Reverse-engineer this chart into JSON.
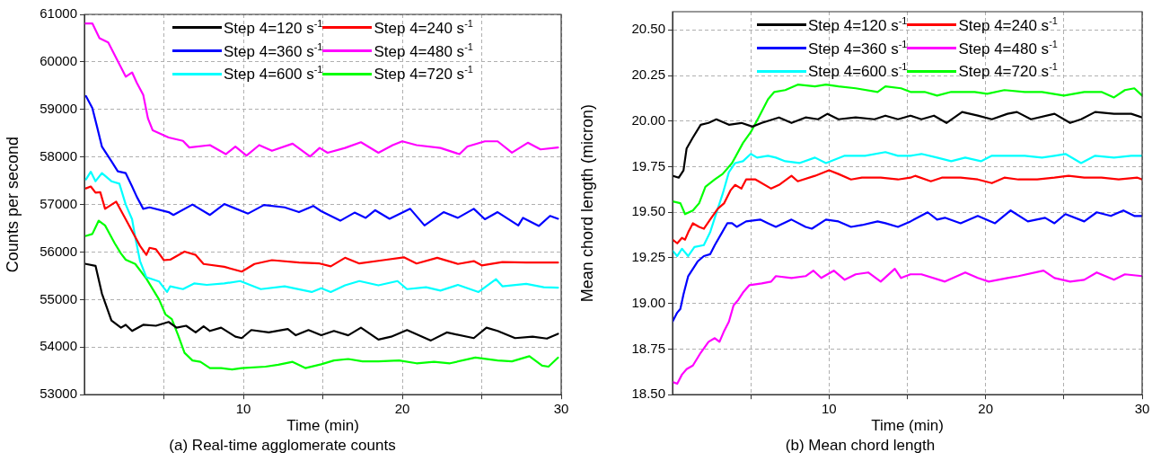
{
  "chart_data": [
    {
      "type": "line",
      "title": "(a) Real-time agglomerate counts",
      "xlabel": "Time (min)",
      "ylabel": "Counts per second",
      "xlim": [
        0,
        30
      ],
      "xticks": [
        {
          "value": 5,
          "label": null
        },
        10,
        {
          "value": 15,
          "label": null
        },
        20,
        {
          "value": 25,
          "label": null
        },
        30
      ],
      "ylim": [
        53000,
        61000
      ],
      "yticks": [
        53000,
        54000,
        55000,
        56000,
        57000,
        58000,
        59000,
        60000,
        61000
      ],
      "grid": true,
      "legend": "top",
      "marker": "none",
      "line_style": "solid",
      "series": [
        {
          "name": "Step 4=120 s$^{-1}$",
          "color": "#000000",
          "x": [
            0.1,
            0.7,
            1.1,
            1.3,
            1.7,
            2.3,
            2.6,
            3.0,
            3.7,
            4.5,
            5.3,
            5.8,
            6.4,
            7.0,
            7.5,
            7.9,
            8.6,
            9.5,
            9.9,
            10.5,
            11.6,
            12.8,
            13.3,
            14.1,
            14.9,
            15.7,
            16.6,
            17.4,
            18.5,
            19.3,
            20.3,
            21.8,
            22.8,
            24.5,
            25.3,
            26.0,
            27.1,
            28.2,
            29.1,
            29.8
          ],
          "values": [
            55750,
            55710,
            55130,
            54940,
            54560,
            54410,
            54470,
            54340,
            54470,
            54450,
            54530,
            54410,
            54450,
            54310,
            54440,
            54340,
            54410,
            54220,
            54190,
            54360,
            54310,
            54380,
            54250,
            54360,
            54250,
            54340,
            54250,
            54410,
            54160,
            54220,
            54360,
            54140,
            54310,
            54190,
            54410,
            54340,
            54190,
            54220,
            54180,
            54280
          ]
        },
        {
          "name": "Step 4=240 s$^{-1}$",
          "color": "#ff0000",
          "x": [
            0.1,
            0.4,
            0.7,
            1.0,
            1.3,
            2.0,
            2.6,
            3.1,
            3.5,
            3.9,
            4.1,
            4.5,
            5.0,
            5.4,
            6.3,
            7.0,
            7.5,
            8.8,
            9.9,
            10.7,
            11.8,
            13.5,
            14.8,
            15.5,
            16.4,
            17.3,
            18.8,
            20.1,
            20.9,
            22.2,
            23.5,
            24.5,
            25.0,
            26.3,
            27.8,
            29.8
          ],
          "values": [
            57340,
            57380,
            57250,
            57260,
            56910,
            57060,
            56690,
            56380,
            56130,
            55940,
            56090,
            56060,
            55830,
            55840,
            56010,
            55940,
            55750,
            55690,
            55590,
            55750,
            55830,
            55780,
            55760,
            55700,
            55880,
            55760,
            55830,
            55890,
            55760,
            55880,
            55750,
            55810,
            55720,
            55790,
            55780,
            55780
          ]
        },
        {
          "name": "Step 4=360 s$^{-1}$",
          "color": "#0000ff",
          "x": [
            0.1,
            0.5,
            0.8,
            1.1,
            1.7,
            2.1,
            2.6,
            3.0,
            3.3,
            3.7,
            4.1,
            5.3,
            5.6,
            6.8,
            7.9,
            8.8,
            10.3,
            11.3,
            12.6,
            13.5,
            14.4,
            14.9,
            16.1,
            17.0,
            17.7,
            18.3,
            19.2,
            20.5,
            21.4,
            22.6,
            23.5,
            24.5,
            25.2,
            26.0,
            27.3,
            27.6,
            28.6,
            29.3,
            29.8
          ],
          "values": [
            59280,
            59030,
            58630,
            58220,
            57910,
            57700,
            57660,
            57380,
            57160,
            56910,
            56940,
            56840,
            56780,
            57000,
            56780,
            57010,
            56810,
            56990,
            56940,
            56840,
            56970,
            56860,
            56660,
            56830,
            56720,
            56880,
            56700,
            56910,
            56560,
            56840,
            56720,
            56910,
            56690,
            56840,
            56560,
            56720,
            56550,
            56760,
            56700
          ]
        },
        {
          "name": "Step 4=480 s$^{-1}$",
          "color": "#ff00ff",
          "x": [
            0,
            0.5,
            0.95,
            1.5,
            2.6,
            3.0,
            3.3,
            3.7,
            4.0,
            4.3,
            5.3,
            6.2,
            6.6,
            7.9,
            8.9,
            9.5,
            10.2,
            11.0,
            11.8,
            13.1,
            14.2,
            14.8,
            15.3,
            16.4,
            17.4,
            18.5,
            19.4,
            20.0,
            20.9,
            22.4,
            23.6,
            24.1,
            25.2,
            26.0,
            26.9,
            27.9,
            28.7,
            29.8
          ],
          "values": [
            60810,
            60810,
            60500,
            60410,
            59690,
            59780,
            59560,
            59310,
            58810,
            58560,
            58410,
            58340,
            58200,
            58250,
            58060,
            58220,
            58030,
            58250,
            58130,
            58280,
            58010,
            58190,
            58090,
            58190,
            58310,
            58090,
            58250,
            58330,
            58250,
            58190,
            58060,
            58220,
            58330,
            58330,
            58090,
            58300,
            58160,
            58200
          ]
        },
        {
          "name": "Step 4=600 s$^{-1}$",
          "color": "#00ffff",
          "x": [
            0.1,
            0.4,
            0.7,
            1.1,
            1.7,
            2.2,
            2.6,
            3.0,
            3.2,
            3.5,
            3.9,
            4.7,
            5.2,
            5.4,
            6.2,
            6.9,
            7.7,
            8.8,
            9.8,
            11.1,
            12.6,
            14.3,
            14.9,
            15.5,
            16.4,
            17.3,
            18.5,
            19.7,
            20.3,
            21.5,
            22.4,
            23.5,
            24.8,
            25.9,
            26.3,
            27.8,
            28.9,
            29.8
          ],
          "values": [
            57530,
            57690,
            57490,
            57660,
            57490,
            57440,
            57000,
            56690,
            56310,
            55810,
            55470,
            55380,
            55160,
            55280,
            55220,
            55340,
            55310,
            55340,
            55390,
            55220,
            55280,
            55160,
            55240,
            55160,
            55300,
            55390,
            55300,
            55390,
            55220,
            55260,
            55190,
            55310,
            55160,
            55430,
            55280,
            55330,
            55260,
            55250
          ]
        },
        {
          "name": "Step 4=720 s$^{-1}$",
          "color": "#00ff00",
          "x": [
            0.1,
            0.5,
            0.9,
            1.3,
            1.9,
            2.3,
            2.6,
            3.2,
            3.9,
            4.7,
            5.1,
            5.5,
            5.9,
            6.3,
            6.8,
            7.3,
            7.9,
            8.6,
            9.3,
            9.9,
            11.4,
            12.2,
            13.1,
            13.9,
            14.9,
            15.7,
            16.6,
            17.5,
            18.5,
            19.8,
            20.9,
            22.0,
            23.0,
            24.6,
            26.0,
            26.9,
            28.0,
            28.8,
            29.2,
            29.8
          ],
          "values": [
            56340,
            56380,
            56660,
            56560,
            56190,
            55970,
            55840,
            55750,
            55440,
            55000,
            54690,
            54590,
            54250,
            53880,
            53720,
            53690,
            53560,
            53560,
            53530,
            53560,
            53590,
            53630,
            53690,
            53560,
            53640,
            53720,
            53750,
            53700,
            53700,
            53720,
            53660,
            53690,
            53660,
            53780,
            53720,
            53700,
            53810,
            53610,
            53590,
            53780
          ]
        }
      ]
    },
    {
      "type": "line",
      "title": "(b) Mean chord length",
      "xlabel": "Time (min)",
      "ylabel": "Mean chord length (micron)",
      "xlim": [
        0,
        30
      ],
      "xticks": [
        {
          "value": 5,
          "label": null
        },
        10,
        {
          "value": 15,
          "label": null
        },
        20,
        {
          "value": 25,
          "label": null
        },
        30
      ],
      "ylim": [
        18.5,
        20.6
      ],
      "yticks": [
        {
          "value": 18.5,
          "label": "18.50"
        },
        18.75,
        {
          "value": 19,
          "label": "19.00"
        },
        19.25,
        {
          "value": 19.5,
          "label": "19.50"
        },
        19.75,
        {
          "value": 20,
          "label": "20.00"
        },
        20.25,
        {
          "value": 20.5,
          "label": "20.50"
        }
      ],
      "grid": true,
      "legend": "top",
      "marker": "none",
      "line_style": "solid",
      "series": [
        {
          "name": "Step 4=120 s$^{-1}$",
          "color": "#000000",
          "x": [
            0,
            0.4,
            0.7,
            0.9,
            1.3,
            1.8,
            2.3,
            2.8,
            3.6,
            4.4,
            5.1,
            5.7,
            6.8,
            7.6,
            8.5,
            9.3,
            9.9,
            10.6,
            11.7,
            12.9,
            13.6,
            14.4,
            15.2,
            15.9,
            16.7,
            17.5,
            18.5,
            19.5,
            20.4,
            21.4,
            22.0,
            22.9,
            24.4,
            25.4,
            26.1,
            27.0,
            28.2,
            29.3,
            30
          ],
          "values": [
            19.7,
            19.69,
            19.73,
            19.85,
            19.91,
            19.98,
            19.99,
            20.01,
            19.98,
            19.99,
            19.97,
            19.99,
            20.02,
            19.99,
            20.02,
            20.01,
            20.04,
            20.01,
            20.02,
            20.01,
            20.03,
            20.01,
            20.03,
            20.01,
            20.03,
            19.99,
            20.05,
            20.03,
            20.01,
            20.04,
            20.05,
            20.01,
            20.04,
            19.99,
            20.01,
            20.05,
            20.04,
            20.04,
            20.02
          ]
        },
        {
          "name": "Step 4=240 s$^{-1}$",
          "color": "#ff0000",
          "x": [
            0,
            0.3,
            0.6,
            0.8,
            1.0,
            1.3,
            1.7,
            2.0,
            2.4,
            2.9,
            3.3,
            3.7,
            4.0,
            4.4,
            4.7,
            5.3,
            6.3,
            6.8,
            7.6,
            8.0,
            9.1,
            10.0,
            10.6,
            11.4,
            12.1,
            13.3,
            14.4,
            15.2,
            15.5,
            16.5,
            17.2,
            18.4,
            19.5,
            20.4,
            21.2,
            22.1,
            23.3,
            24.4,
            25.3,
            26.3,
            27.4,
            28.5,
            29.7,
            30
          ],
          "values": [
            19.35,
            19.33,
            19.36,
            19.35,
            19.39,
            19.44,
            19.42,
            19.41,
            19.46,
            19.52,
            19.55,
            19.62,
            19.65,
            19.63,
            19.68,
            19.68,
            19.63,
            19.65,
            19.7,
            19.67,
            19.7,
            19.73,
            19.71,
            19.68,
            19.69,
            19.69,
            19.68,
            19.69,
            19.7,
            19.67,
            19.69,
            19.69,
            19.68,
            19.66,
            19.69,
            19.68,
            19.68,
            19.69,
            19.7,
            19.69,
            19.69,
            19.68,
            19.69,
            19.68
          ]
        },
        {
          "name": "Step 4=360 s$^{-1}$",
          "color": "#0000ff",
          "x": [
            0,
            0.3,
            0.5,
            0.7,
            1.0,
            1.6,
            2.0,
            2.4,
            2.7,
            3.1,
            3.5,
            3.8,
            4.1,
            4.7,
            5.6,
            6.1,
            6.6,
            7.6,
            8.5,
            8.9,
            9.8,
            10.6,
            11.4,
            12.1,
            13.1,
            13.6,
            14.4,
            15.2,
            16.3,
            16.9,
            17.4,
            18.4,
            19.5,
            20.6,
            21.6,
            22.7,
            23.8,
            24.4,
            25.1,
            26.3,
            27.1,
            28.0,
            28.8,
            29.5,
            30
          ],
          "values": [
            18.9,
            18.95,
            18.97,
            19.05,
            19.15,
            19.23,
            19.26,
            19.27,
            19.32,
            19.38,
            19.44,
            19.44,
            19.42,
            19.45,
            19.46,
            19.44,
            19.42,
            19.46,
            19.42,
            19.41,
            19.46,
            19.45,
            19.42,
            19.43,
            19.45,
            19.44,
            19.42,
            19.45,
            19.5,
            19.46,
            19.47,
            19.44,
            19.48,
            19.44,
            19.51,
            19.45,
            19.47,
            19.44,
            19.49,
            19.45,
            19.5,
            19.48,
            19.51,
            19.48,
            19.48
          ]
        },
        {
          "name": "Step 4=480 s$^{-1}$",
          "color": "#ff00ff",
          "x": [
            0,
            0.3,
            0.6,
            0.9,
            1.3,
            1.8,
            2.3,
            2.7,
            3.0,
            3.3,
            3.6,
            3.9,
            4.2,
            4.5,
            4.9,
            5.7,
            6.3,
            6.6,
            7.6,
            8.5,
            9.0,
            9.5,
            10.3,
            11.0,
            11.7,
            12.5,
            13.3,
            14.2,
            14.6,
            15.2,
            15.9,
            17.4,
            18.7,
            19.5,
            20.2,
            21.4,
            22.1,
            23.7,
            24.4,
            25.4,
            26.3,
            27.1,
            28.2,
            28.9,
            30
          ],
          "values": [
            18.57,
            18.56,
            18.61,
            18.64,
            18.66,
            18.73,
            18.79,
            18.81,
            18.79,
            18.85,
            18.9,
            18.99,
            19.02,
            19.06,
            19.1,
            19.11,
            19.12,
            19.15,
            19.14,
            19.15,
            19.18,
            19.14,
            19.18,
            19.13,
            19.16,
            19.17,
            19.12,
            19.19,
            19.14,
            19.16,
            19.16,
            19.12,
            19.17,
            19.14,
            19.12,
            19.14,
            19.15,
            19.18,
            19.14,
            19.12,
            19.13,
            19.17,
            19.13,
            19.16,
            19.15
          ]
        },
        {
          "name": "Step 4=600 s$^{-1}$",
          "color": "#00ffff",
          "x": [
            0,
            0.3,
            0.6,
            1.0,
            1.4,
            2.0,
            2.4,
            2.7,
            3.2,
            3.6,
            4.0,
            4.5,
            5.0,
            5.4,
            6.1,
            6.6,
            7.2,
            8.1,
            9.1,
            9.8,
            11.0,
            12.3,
            13.6,
            14.4,
            15.2,
            15.9,
            16.9,
            17.8,
            18.7,
            19.7,
            20.4,
            21.4,
            22.5,
            23.6,
            24.4,
            25.1,
            26.1,
            27.0,
            28.2,
            29.3,
            30
          ],
          "values": [
            19.29,
            19.26,
            19.3,
            19.26,
            19.31,
            19.32,
            19.39,
            19.47,
            19.6,
            19.72,
            19.77,
            19.78,
            19.82,
            19.8,
            19.81,
            19.8,
            19.78,
            19.77,
            19.8,
            19.77,
            19.81,
            19.81,
            19.83,
            19.81,
            19.81,
            19.82,
            19.8,
            19.78,
            19.8,
            19.78,
            19.81,
            19.81,
            19.81,
            19.8,
            19.81,
            19.82,
            19.77,
            19.81,
            19.8,
            19.81,
            19.81
          ]
        },
        {
          "name": "Step 4=720 s$^{-1}$",
          "color": "#00ff00",
          "x": [
            0,
            0.5,
            0.8,
            1.3,
            1.7,
            2.1,
            2.7,
            3.2,
            3.8,
            4.5,
            5.0,
            5.5,
            6.1,
            6.5,
            7.2,
            8.0,
            9.1,
            9.8,
            10.6,
            11.7,
            13.1,
            13.6,
            14.6,
            15.2,
            16.1,
            16.9,
            17.8,
            19.3,
            20.1,
            21.2,
            22.5,
            23.6,
            25.0,
            26.3,
            27.4,
            28.2,
            28.9,
            29.5,
            30
          ],
          "values": [
            19.56,
            19.55,
            19.49,
            19.51,
            19.55,
            19.64,
            19.68,
            19.71,
            19.77,
            19.88,
            19.94,
            20.02,
            20.12,
            20.16,
            20.17,
            20.2,
            20.19,
            20.2,
            20.19,
            20.18,
            20.16,
            20.19,
            20.18,
            20.16,
            20.16,
            20.14,
            20.16,
            20.16,
            20.15,
            20.17,
            20.16,
            20.16,
            20.14,
            20.16,
            20.16,
            20.13,
            20.17,
            20.18,
            20.14
          ]
        }
      ]
    }
  ]
}
